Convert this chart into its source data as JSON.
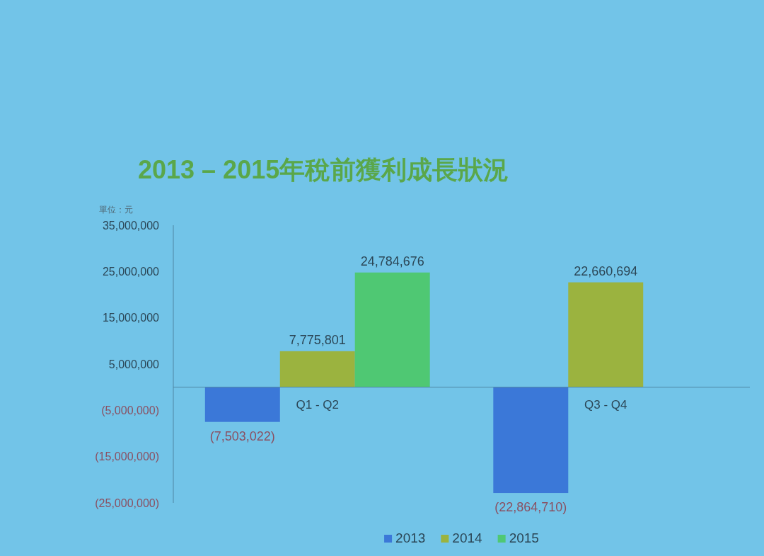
{
  "chart_data": {
    "type": "bar",
    "title": "2013 – 2015年稅前獲利成長狀況",
    "ylabel": "單位：元",
    "categories": [
      "Q1 - Q2",
      "Q3 - Q4"
    ],
    "series": [
      {
        "name": "2013",
        "color": "#3b78d8",
        "values": [
          -7503022,
          -22864710
        ],
        "value_labels": [
          "(7,503,022)",
          "(22,864,710)"
        ]
      },
      {
        "name": "2014",
        "color": "#9bb33f",
        "values": [
          7775801,
          22660694
        ],
        "value_labels": [
          "7,775,801",
          "22,660,694"
        ]
      },
      {
        "name": "2015",
        "color": "#4fc873",
        "values": [
          24784676,
          null
        ],
        "value_labels": [
          "24,784,676",
          null
        ]
      }
    ],
    "ylim": [
      -25000000,
      35000000
    ],
    "yticks": [
      {
        "value": 35000000,
        "label": "35,000,000"
      },
      {
        "value": 25000000,
        "label": "25,000,000"
      },
      {
        "value": 15000000,
        "label": "15,000,000"
      },
      {
        "value": 5000000,
        "label": "5,000,000"
      },
      {
        "value": -5000000,
        "label": "(5,000,000)"
      },
      {
        "value": -15000000,
        "label": "(15,000,000)"
      },
      {
        "value": -25000000,
        "label": "(25,000,000)"
      }
    ],
    "legend": "bottom"
  }
}
